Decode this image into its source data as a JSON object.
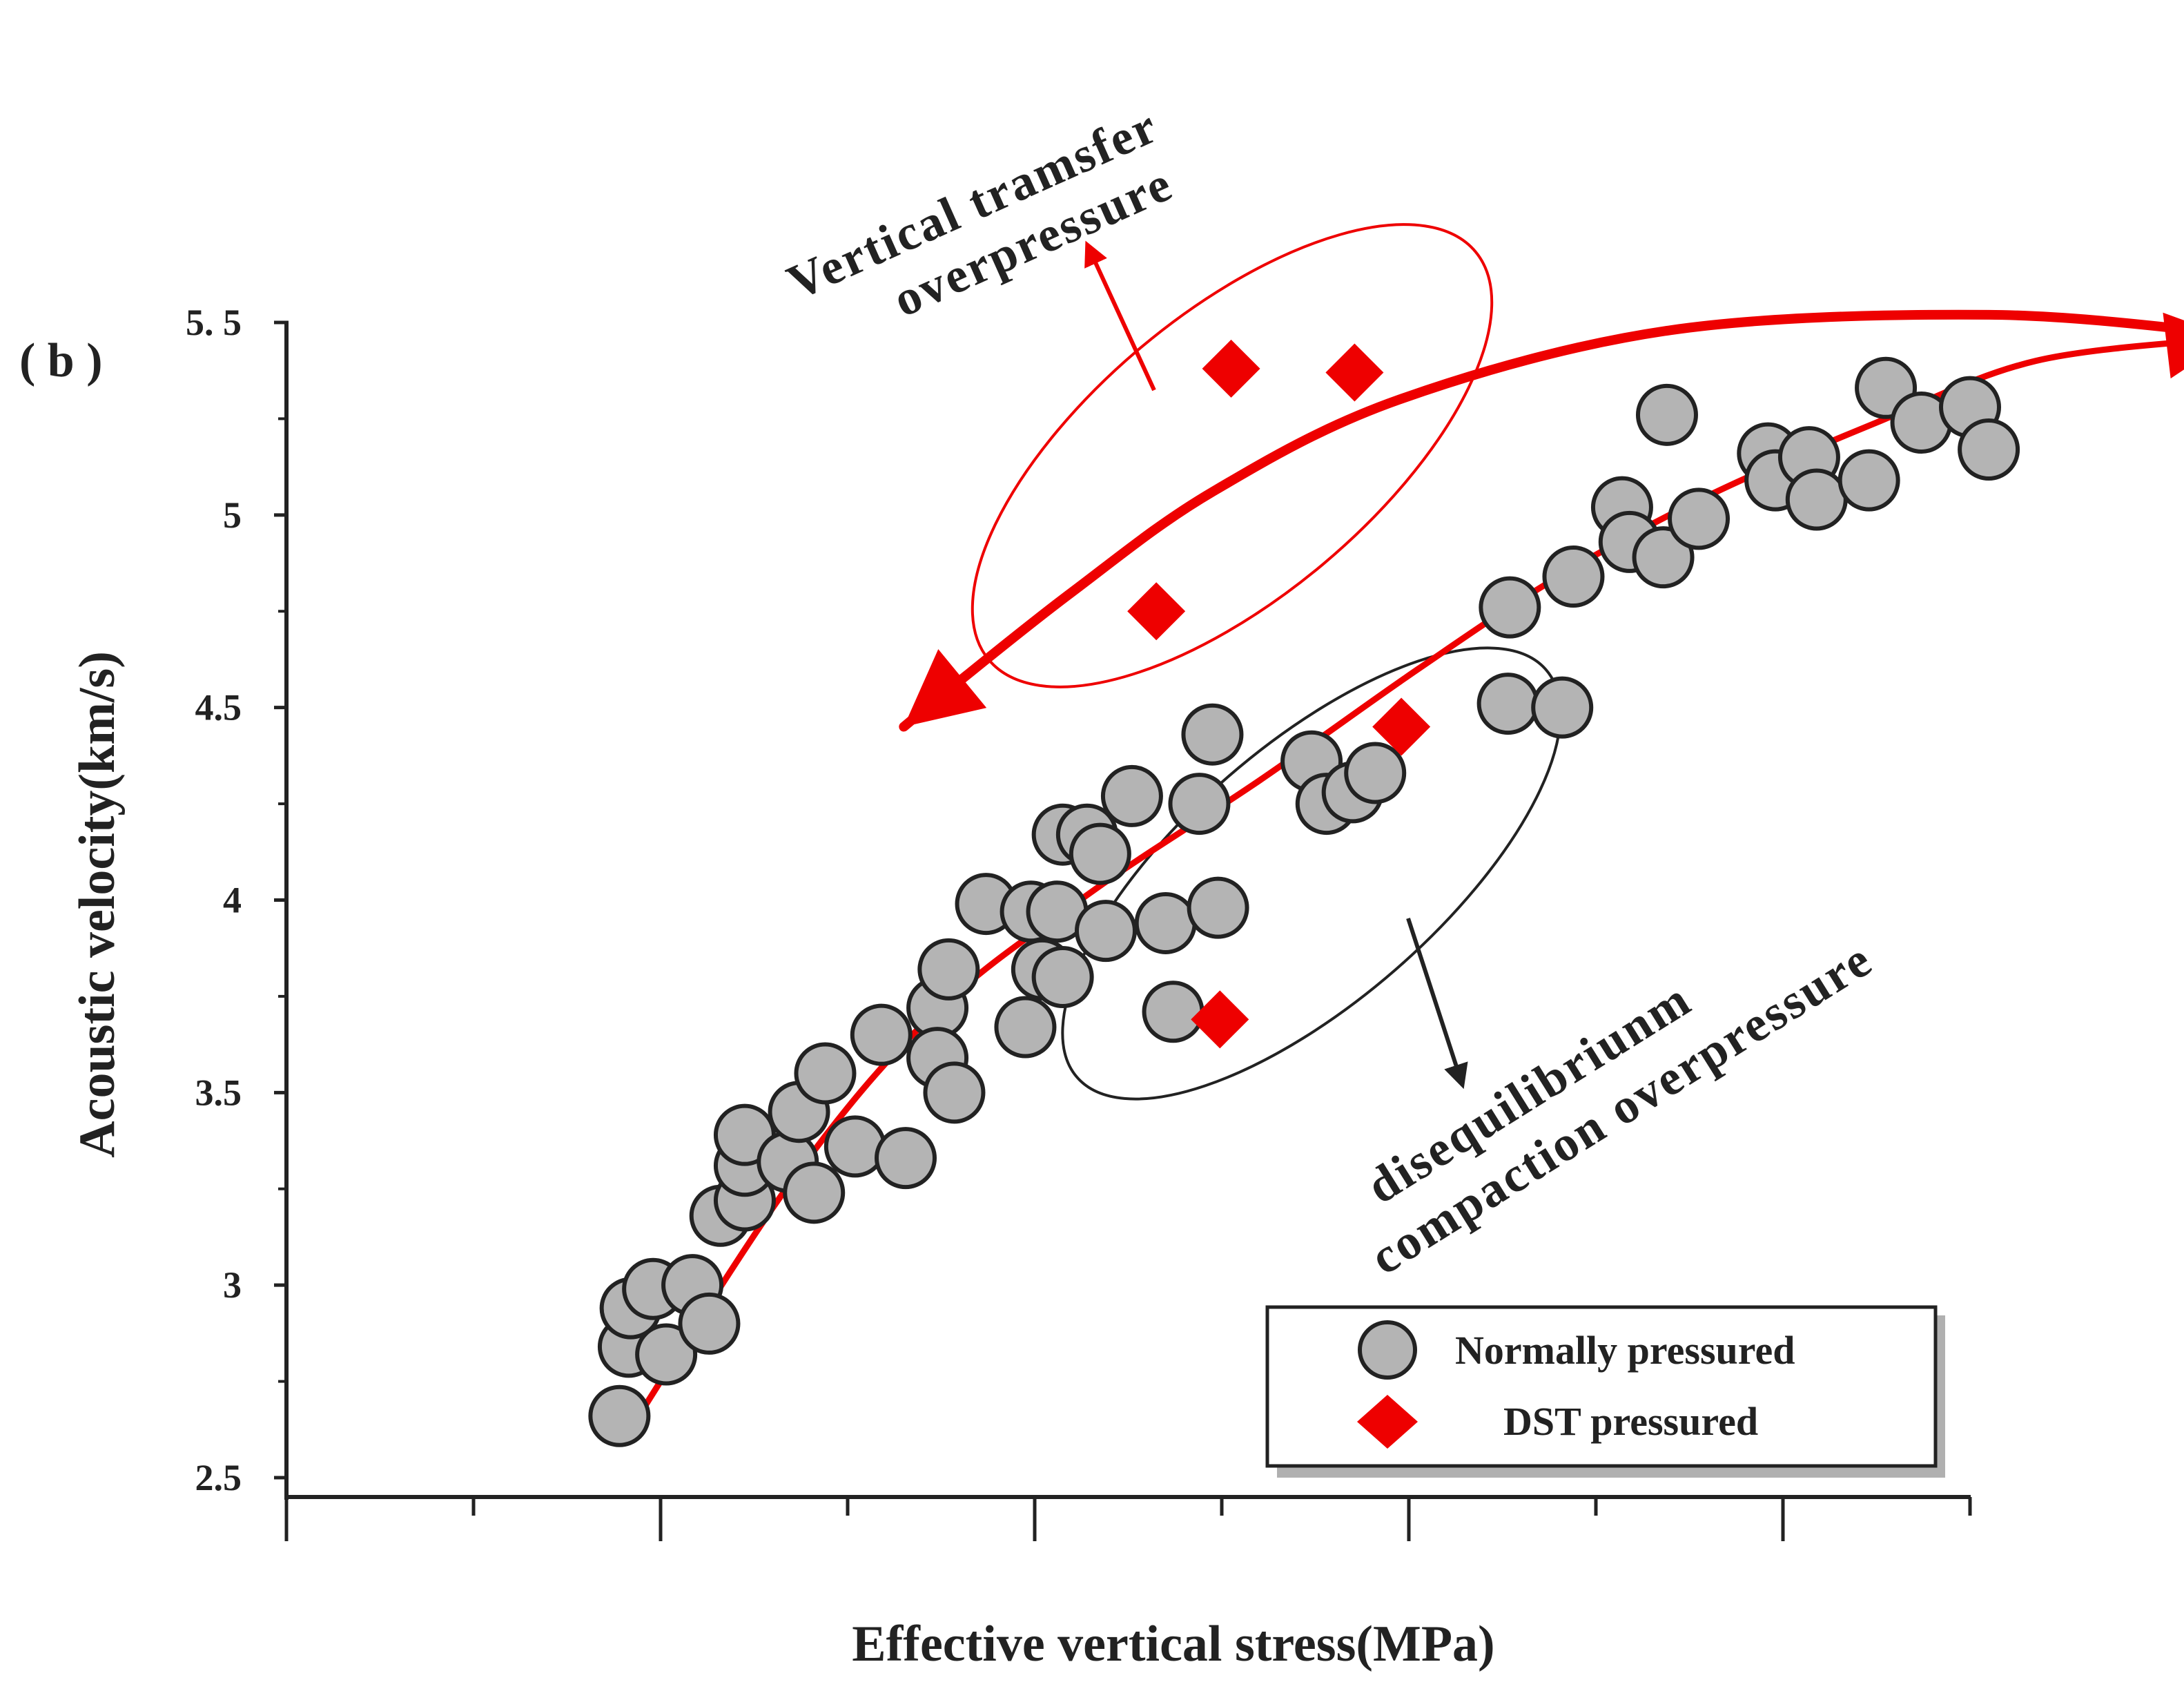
{
  "chart_data": {
    "type": "scatter",
    "panel_label": "( b )",
    "xlabel": "Effective vertical stress(MPa)",
    "ylabel": "Acoustic velocity(km/s)",
    "ylim": [
      2.5,
      5.5
    ],
    "x_unit_note": "x tick labels not shown; x in effective-stress units mapped to ticks 0-9",
    "xlim": [
      0,
      9
    ],
    "y_ticks": [
      {
        "value": 2.5,
        "label": "2.5"
      },
      {
        "value": 3,
        "label": "3"
      },
      {
        "value": 3.5,
        "label": "3.5"
      },
      {
        "value": 4,
        "label": "4"
      },
      {
        "value": 4.5,
        "label": "4.5"
      },
      {
        "value": 5,
        "label": "5"
      },
      {
        "value": 5.5,
        "label": "5. 5"
      }
    ],
    "x_ticks": [
      0,
      1,
      2,
      3,
      4,
      5,
      6,
      7,
      8,
      9
    ],
    "series": [
      {
        "name": "Normally pressured",
        "marker": "circle",
        "color": "#b4b4b4",
        "points": [
          [
            1.78,
            2.66
          ],
          [
            1.83,
            2.84
          ],
          [
            1.84,
            2.94
          ],
          [
            1.96,
            2.99
          ],
          [
            2.03,
            2.82
          ],
          [
            2.17,
            3.0
          ],
          [
            2.26,
            2.9
          ],
          [
            2.32,
            3.18
          ],
          [
            2.45,
            3.22
          ],
          [
            2.45,
            3.31
          ],
          [
            2.45,
            3.39
          ],
          [
            2.68,
            3.32
          ],
          [
            2.74,
            3.45
          ],
          [
            2.82,
            3.24
          ],
          [
            2.88,
            3.55
          ],
          [
            3.04,
            3.36
          ],
          [
            3.18,
            3.65
          ],
          [
            3.31,
            3.33
          ],
          [
            3.48,
            3.72
          ],
          [
            3.48,
            3.59
          ],
          [
            3.54,
            3.82
          ],
          [
            3.57,
            3.5
          ],
          [
            3.74,
            3.99
          ],
          [
            3.95,
            3.67
          ],
          [
            3.98,
            3.97
          ],
          [
            4.04,
            3.82
          ],
          [
            4.12,
            3.97
          ],
          [
            4.15,
            4.17
          ],
          [
            4.15,
            3.8
          ],
          [
            4.28,
            4.17
          ],
          [
            4.35,
            4.12
          ],
          [
            4.38,
            3.92
          ],
          [
            4.52,
            4.27
          ],
          [
            4.7,
            3.94
          ],
          [
            4.74,
            3.71
          ],
          [
            4.88,
            4.25
          ],
          [
            4.95,
            4.43
          ],
          [
            4.98,
            3.98
          ],
          [
            5.48,
            4.36
          ],
          [
            5.56,
            4.25
          ],
          [
            5.7,
            4.28
          ],
          [
            5.82,
            4.33
          ],
          [
            6.53,
            4.51
          ],
          [
            6.54,
            4.76
          ],
          [
            6.82,
            4.5
          ],
          [
            6.88,
            4.84
          ],
          [
            7.14,
            5.02
          ],
          [
            7.18,
            4.93
          ],
          [
            7.36,
            4.89
          ],
          [
            7.38,
            5.26
          ],
          [
            7.55,
            4.99
          ],
          [
            7.92,
            5.16
          ],
          [
            7.96,
            5.09
          ],
          [
            8.14,
            5.15
          ],
          [
            8.18,
            5.04
          ],
          [
            8.46,
            5.09
          ],
          [
            8.55,
            5.33
          ],
          [
            8.74,
            5.24
          ],
          [
            9.0,
            5.28
          ],
          [
            9.1,
            5.17
          ]
        ]
      },
      {
        "name": "DST pressured",
        "marker": "diamond",
        "color": "#ee0000",
        "points": [
          [
            5.05,
            5.38
          ],
          [
            5.71,
            5.37
          ],
          [
            4.65,
            4.75
          ],
          [
            5.96,
            4.45
          ],
          [
            4.99,
            3.69
          ]
        ]
      }
    ],
    "annotations": [
      {
        "name": "vertical-transfer",
        "lines": [
          "Vertical tramsfer",
          "overpressure"
        ],
        "color": "#ee0000"
      },
      {
        "name": "disequilibrium",
        "lines": [
          "disequilibriunm",
          "compaction overpressure"
        ],
        "color": "#222222"
      }
    ],
    "trend_line": {
      "name": "normal compaction trend",
      "color": "#ee0000",
      "points": [
        [
          1.83,
          2.62
        ],
        [
          2.7,
          3.27
        ],
        [
          3.45,
          3.7
        ],
        [
          4.3,
          4.02
        ],
        [
          5.2,
          4.31
        ],
        [
          6.05,
          4.6
        ],
        [
          6.8,
          4.84
        ],
        [
          7.6,
          5.05
        ],
        [
          8.5,
          5.24
        ],
        [
          9.35,
          5.4
        ],
        [
          10.4,
          5.46
        ]
      ]
    },
    "reversal_curve": {
      "color": "#ee0000",
      "points": [
        [
          10.4,
          5.47
        ],
        [
          9.1,
          5.52
        ],
        [
          7.4,
          5.48
        ],
        [
          5.95,
          5.3
        ],
        [
          4.95,
          5.06
        ],
        [
          4.2,
          4.8
        ],
        [
          3.55,
          4.55
        ],
        [
          3.3,
          4.45
        ]
      ]
    },
    "legend": {
      "position": "bottom-right",
      "items": [
        {
          "label": "Normally pressured",
          "marker": "circle",
          "color": "#b4b4b4"
        },
        {
          "label": "DST pressured",
          "marker": "diamond",
          "color": "#ee0000"
        }
      ]
    }
  }
}
